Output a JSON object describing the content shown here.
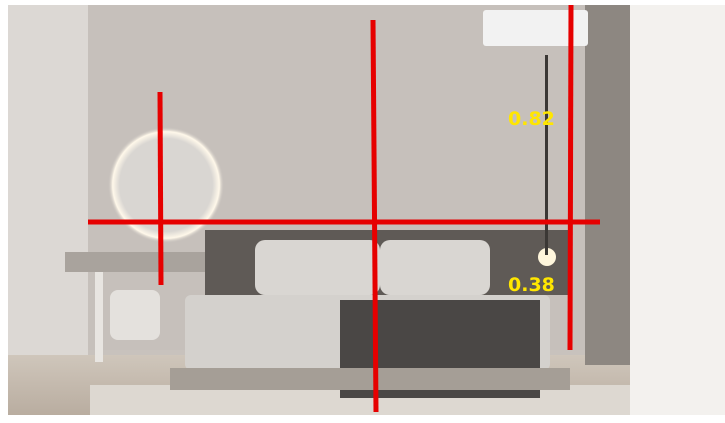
{
  "annotations": {
    "labels": [
      "0.82",
      "0.38"
    ]
  }
}
